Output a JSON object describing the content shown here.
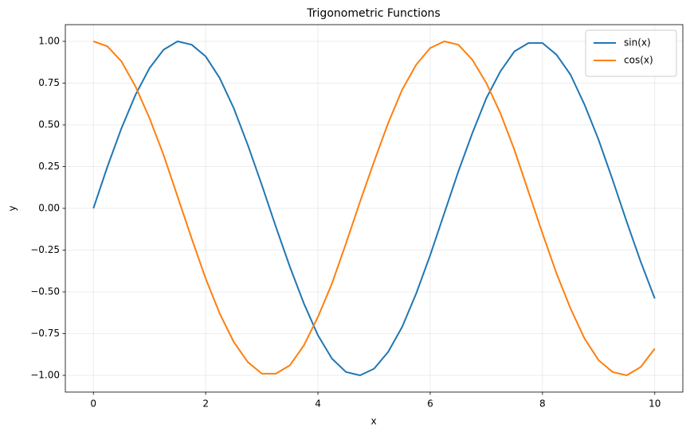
{
  "chart_data": {
    "type": "line",
    "title": "Trigonometric Functions",
    "x_label": "x",
    "y_label": "y",
    "x": [
      0,
      0.25,
      0.5,
      0.75,
      1,
      1.25,
      1.5,
      1.75,
      2,
      2.25,
      2.5,
      2.75,
      3,
      3.25,
      3.5,
      3.75,
      4,
      4.25,
      4.5,
      4.75,
      5,
      5.25,
      5.5,
      5.75,
      6,
      6.25,
      6.5,
      6.75,
      7,
      7.25,
      7.5,
      7.75,
      8,
      8.25,
      8.5,
      8.75,
      9,
      9.25,
      9.5,
      9.75,
      10
    ],
    "series": [
      {
        "name": "sin(x)",
        "color": "#1f77b4",
        "values": [
          0,
          0.25,
          0.48,
          0.68,
          0.84,
          0.95,
          1.0,
          0.98,
          0.91,
          0.78,
          0.6,
          0.38,
          0.14,
          -0.11,
          -0.35,
          -0.57,
          -0.76,
          -0.9,
          -0.98,
          -1.0,
          -0.96,
          -0.86,
          -0.71,
          -0.51,
          -0.28,
          -0.03,
          0.22,
          0.45,
          0.66,
          0.82,
          0.94,
          0.99,
          0.99,
          0.92,
          0.8,
          0.62,
          0.41,
          0.17,
          -0.08,
          -0.32,
          -0.54
        ]
      },
      {
        "name": "cos(x)",
        "color": "#ff7f0e",
        "values": [
          1,
          0.97,
          0.88,
          0.73,
          0.54,
          0.32,
          0.07,
          -0.18,
          -0.42,
          -0.63,
          -0.8,
          -0.92,
          -0.99,
          -0.99,
          -0.94,
          -0.82,
          -0.65,
          -0.45,
          -0.21,
          0.04,
          0.28,
          0.51,
          0.71,
          0.86,
          0.96,
          1.0,
          0.98,
          0.89,
          0.75,
          0.57,
          0.35,
          0.1,
          -0.15,
          -0.39,
          -0.6,
          -0.78,
          -0.91,
          -0.98,
          -1.0,
          -0.95,
          -0.84
        ]
      }
    ],
    "xlim": [
      -0.5,
      10.5
    ],
    "ylim": [
      -1.1,
      1.1
    ],
    "xticks": [
      0,
      2,
      4,
      6,
      8,
      10
    ],
    "yticks": [
      {
        "value": -1,
        "label": "−1.00"
      },
      {
        "value": -0.75,
        "label": "−0.75"
      },
      {
        "value": -0.5,
        "label": "−0.50"
      },
      {
        "value": -0.25,
        "label": "−0.25"
      },
      {
        "value": 0,
        "label": "0.00"
      },
      {
        "value": 0.25,
        "label": "0.25"
      },
      {
        "value": 0.5,
        "label": "0.50"
      },
      {
        "value": 0.75,
        "label": "0.75"
      },
      {
        "value": 1,
        "label": "1.00"
      }
    ],
    "grid": true,
    "legend": "upper right"
  }
}
